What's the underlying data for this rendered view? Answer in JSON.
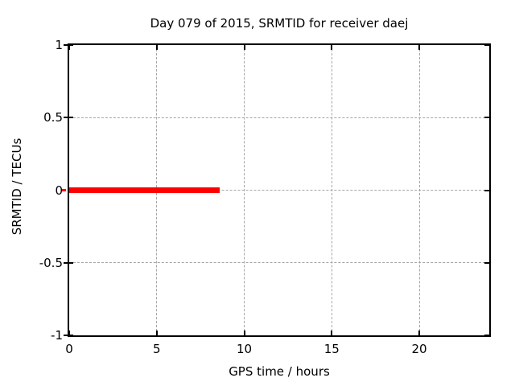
{
  "page": {
    "background": "#ffffff"
  },
  "chart_data": {
    "type": "line",
    "title": "Day 079 of 2015, SRMTID for receiver daej",
    "xlabel": "GPS time / hours",
    "ylabel": "SRMTID / TECUs",
    "xlim": [
      0,
      24
    ],
    "ylim": [
      -1,
      1
    ],
    "xticks": [
      {
        "v": 0,
        "label": "0"
      },
      {
        "v": 5,
        "label": "5"
      },
      {
        "v": 10,
        "label": "10"
      },
      {
        "v": 15,
        "label": "15"
      },
      {
        "v": 20,
        "label": "20"
      }
    ],
    "yticks": [
      {
        "v": 1,
        "label": "1"
      },
      {
        "v": 0.5,
        "label": "0.5"
      },
      {
        "v": 0,
        "label": "0"
      },
      {
        "v": -0.5,
        "label": "-0.5"
      },
      {
        "v": -1,
        "label": "-1"
      }
    ],
    "grid": {
      "x_at": [
        5,
        10,
        15,
        20
      ],
      "y_at": [
        0.5,
        0,
        -0.5
      ],
      "color": "#a6a6a6",
      "style": "dashed"
    },
    "axis_color": "#000000",
    "background": "#ffffff",
    "legend": "none",
    "y_zero_tick_color": "#ff0000",
    "series": [
      {
        "name": "SRMTID",
        "color": "#ff0000",
        "line_width": 7,
        "points": [
          [
            0,
            0
          ],
          [
            8.6,
            0
          ]
        ]
      }
    ]
  }
}
